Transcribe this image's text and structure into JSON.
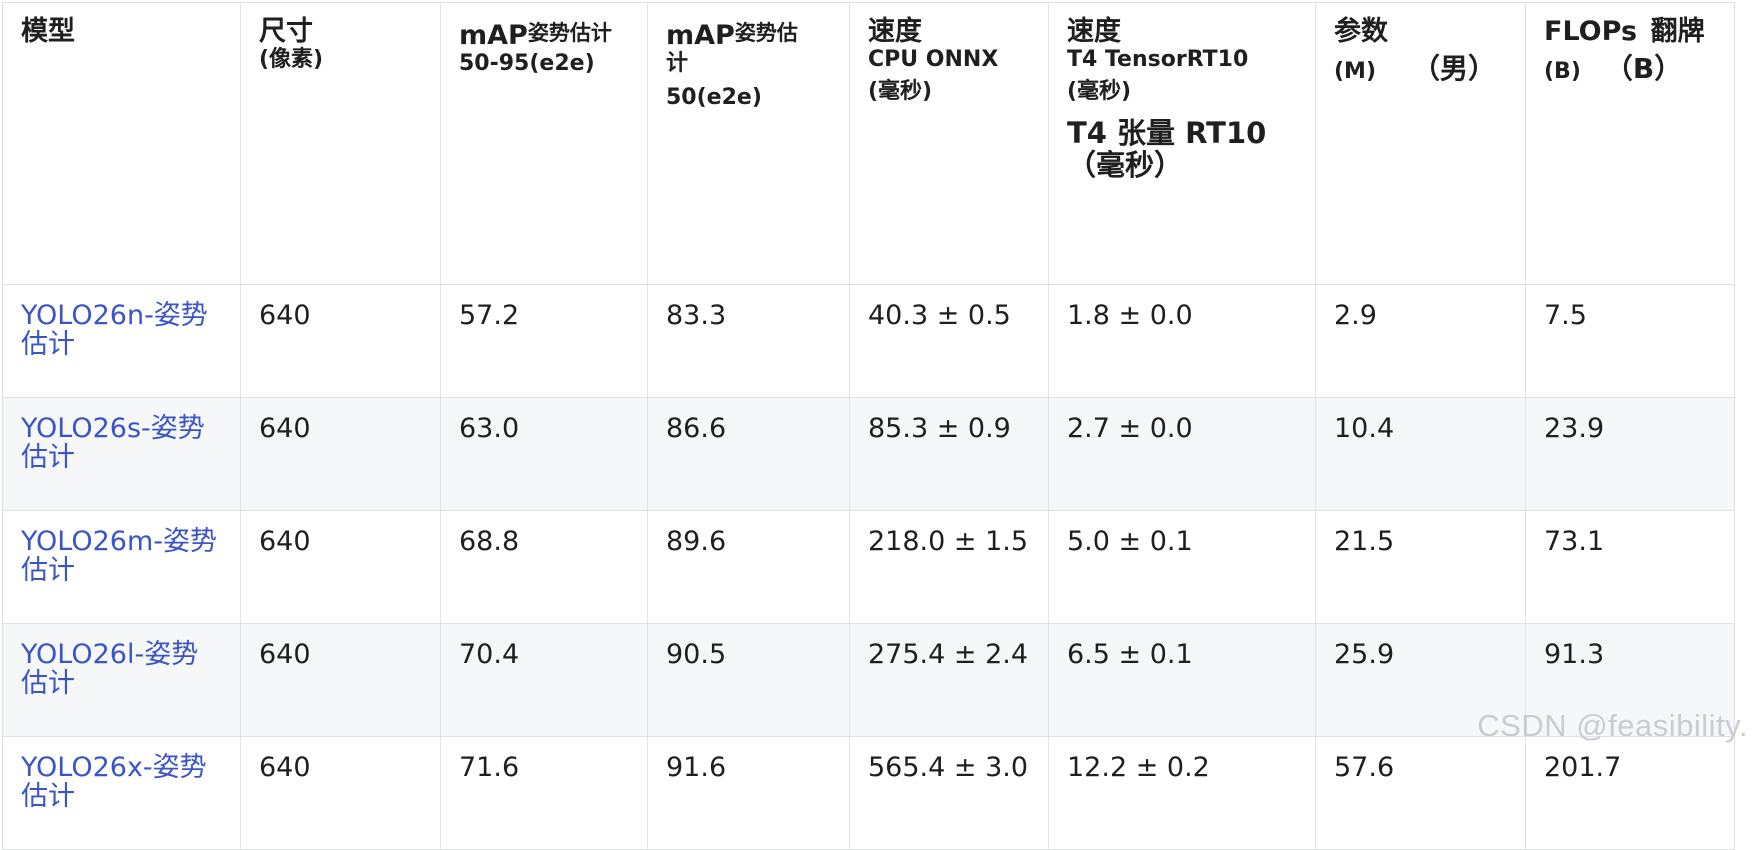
{
  "headers": {
    "model": "模型",
    "size_main": "尺寸",
    "size_sub": "(像素)",
    "map1_main": "mAP",
    "map1_sup": "姿势估计",
    "map1_sub": "50-95(e2e)",
    "map2_main": "mAP",
    "map2_sup": "姿势估",
    "map2_wrap": "计",
    "map2_sub": "50(e2e)",
    "cpu_main": "速度",
    "cpu_sub": "CPU ONNX",
    "cpu_unit": "(毫秒)",
    "gpu_main": "速度",
    "gpu_sub": "T4 TensorRT10",
    "gpu_unit": "(毫秒)",
    "gpu_zh_1": "T4 张量 RT10",
    "gpu_zh_2": "（毫秒）",
    "params_main": "参数",
    "params_sub": "(M)",
    "params_zh": "（男）",
    "flops_main": "FLOPs",
    "flops_zh": "翻牌",
    "flops_sub": "(B)",
    "flops_zh_sub": "（B）"
  },
  "rows": [
    {
      "model": "YOLO26n-姿势估计",
      "size": "640",
      "map50_95": "57.2",
      "map50": "83.3",
      "cpu": "40.3 ± 0.5",
      "gpu": "1.8 ± 0.0",
      "params": "2.9",
      "flops": "7.5"
    },
    {
      "model": "YOLO26s-姿势估计",
      "size": "640",
      "map50_95": "63.0",
      "map50": "86.6",
      "cpu": "85.3 ± 0.9",
      "gpu": "2.7 ± 0.0",
      "params": "10.4",
      "flops": "23.9"
    },
    {
      "model": "YOLO26m-姿势估计",
      "size": "640",
      "map50_95": "68.8",
      "map50": "89.6",
      "cpu": "218.0 ± 1.5",
      "gpu": "5.0 ± 0.1",
      "params": "21.5",
      "flops": "73.1"
    },
    {
      "model": "YOLO26l-姿势估计",
      "size": "640",
      "map50_95": "70.4",
      "map50": "90.5",
      "cpu": "275.4 ± 2.4",
      "gpu": "6.5 ± 0.1",
      "params": "25.9",
      "flops": "91.3"
    },
    {
      "model": "YOLO26x-姿势估计",
      "size": "640",
      "map50_95": "71.6",
      "map50": "91.6",
      "cpu": "565.4 ± 3.0",
      "gpu": "12.2 ± 0.2",
      "params": "57.6",
      "flops": "201.7"
    }
  ],
  "watermark": "CSDN @feasibility."
}
